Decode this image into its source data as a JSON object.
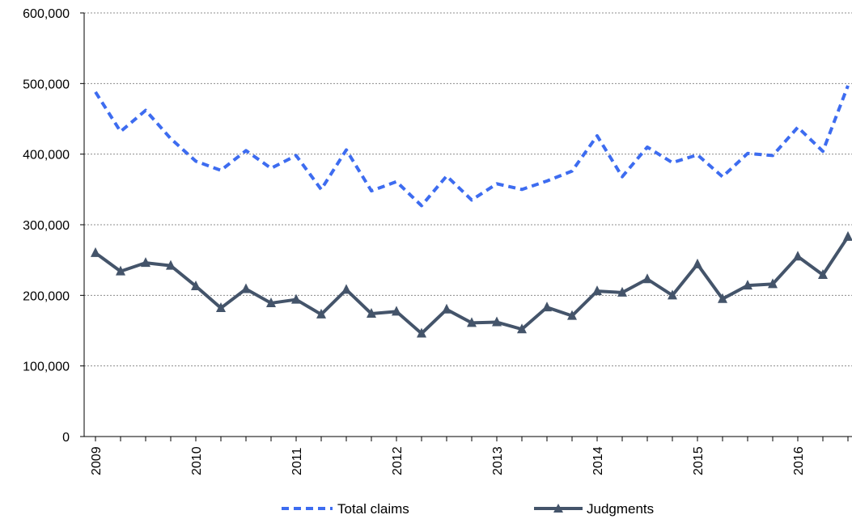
{
  "chart_data": {
    "type": "line",
    "xlabel": "",
    "ylabel": "",
    "x_tick_labels": [
      "2009",
      "2010",
      "2011",
      "2012",
      "2013",
      "2014",
      "2015",
      "2016"
    ],
    "y_tick_labels": [
      "0",
      "100,000",
      "200,000",
      "300,000",
      "400,000",
      "500,000",
      "600,000"
    ],
    "ylim": [
      0,
      600000
    ],
    "y_ticks": [
      0,
      100000,
      200000,
      300000,
      400000,
      500000,
      600000
    ],
    "grid": "horizontal dotted",
    "legend_position": "bottom",
    "x": [
      "2009 Q1",
      "2009 Q2",
      "2009 Q3",
      "2009 Q4",
      "2010 Q1",
      "2010 Q2",
      "2010 Q3",
      "2010 Q4",
      "2011 Q1",
      "2011 Q2",
      "2011 Q3",
      "2011 Q4",
      "2012 Q1",
      "2012 Q2",
      "2012 Q3",
      "2012 Q4",
      "2013 Q1",
      "2013 Q2",
      "2013 Q3",
      "2013 Q4",
      "2014 Q1",
      "2014 Q2",
      "2014 Q3",
      "2014 Q4",
      "2015 Q1",
      "2015 Q2",
      "2015 Q3",
      "2015 Q4",
      "2016 Q1",
      "2016 Q2",
      "2016 Q3"
    ],
    "series": [
      {
        "name": "Total claims",
        "color": "#3d6cf0",
        "line_style": "dashed",
        "values": [
          488000,
          432000,
          462000,
          422000,
          390000,
          377000,
          405000,
          380000,
          398000,
          350000,
          406000,
          348000,
          361000,
          327000,
          369000,
          335000,
          358000,
          350000,
          362000,
          376000,
          426000,
          368000,
          410000,
          388000,
          399000,
          368000,
          401000,
          398000,
          438000,
          404000,
          497000
        ]
      },
      {
        "name": "Judgments",
        "color": "#44546a",
        "line_style": "solid",
        "marker": "triangle",
        "values": [
          260000,
          234000,
          246000,
          242000,
          213000,
          182000,
          209000,
          189000,
          194000,
          173000,
          208000,
          174000,
          177000,
          146000,
          180000,
          161000,
          162000,
          152000,
          183000,
          171000,
          206000,
          204000,
          223000,
          200000,
          244000,
          195000,
          214000,
          216000,
          255000,
          229000,
          283000
        ]
      }
    ]
  }
}
